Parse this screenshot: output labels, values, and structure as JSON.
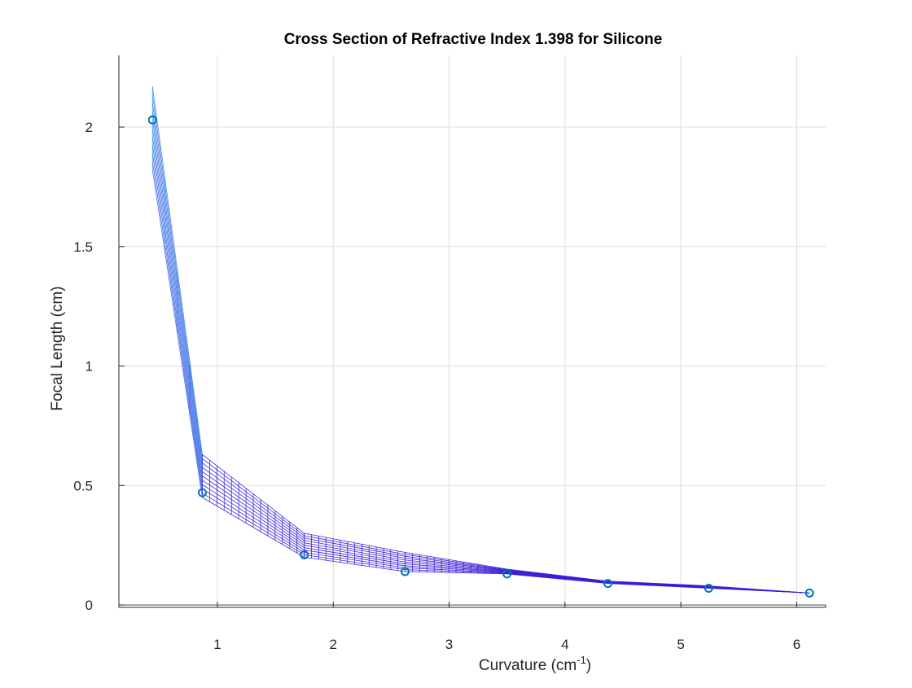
{
  "chart_data": {
    "type": "scatter",
    "title": "Cross Section of Refractive Index 1.398 for Silicone",
    "xlabel_main": "Curvature (cm",
    "xlabel_sup": "-1",
    "xlabel_end": ")",
    "ylabel": "Focal Length (cm)",
    "xlim": [
      0.15,
      6.25
    ],
    "ylim": [
      -0.01,
      2.3
    ],
    "x_ticks": [
      1,
      2,
      3,
      4,
      5,
      6
    ],
    "x_tick_labels": [
      "1",
      "2",
      "3",
      "4",
      "5",
      "6"
    ],
    "y_ticks": [
      0,
      0.5,
      1,
      1.5,
      2
    ],
    "y_tick_labels": [
      "0",
      "0.5",
      "1",
      "1.5",
      "2"
    ],
    "grid": true,
    "legend": "none",
    "series": [
      {
        "marker": "circle",
        "x": [
          0.44,
          0.87,
          1.75,
          2.62,
          3.5,
          4.37,
          5.24,
          6.11
        ],
        "y": [
          2.03,
          0.47,
          0.21,
          0.14,
          0.13,
          0.09,
          0.07,
          0.05
        ]
      }
    ],
    "surface_fit": {
      "style": "mesh",
      "x": [
        0.44,
        0.87,
        1.75,
        2.62,
        3.5,
        4.37,
        5.24,
        6.11
      ],
      "y_lower": [
        1.82,
        0.45,
        0.2,
        0.14,
        0.13,
        0.09,
        0.07,
        0.05
      ],
      "y_upper": [
        2.17,
        0.63,
        0.3,
        0.22,
        0.15,
        0.1,
        0.08,
        0.05
      ]
    },
    "colors": {
      "marker": "#0072BD",
      "mesh_light": "#4FB0F0",
      "mesh_dark": "#3A1FD8",
      "grid": "#DCDCDC",
      "axis": "#262626"
    }
  }
}
